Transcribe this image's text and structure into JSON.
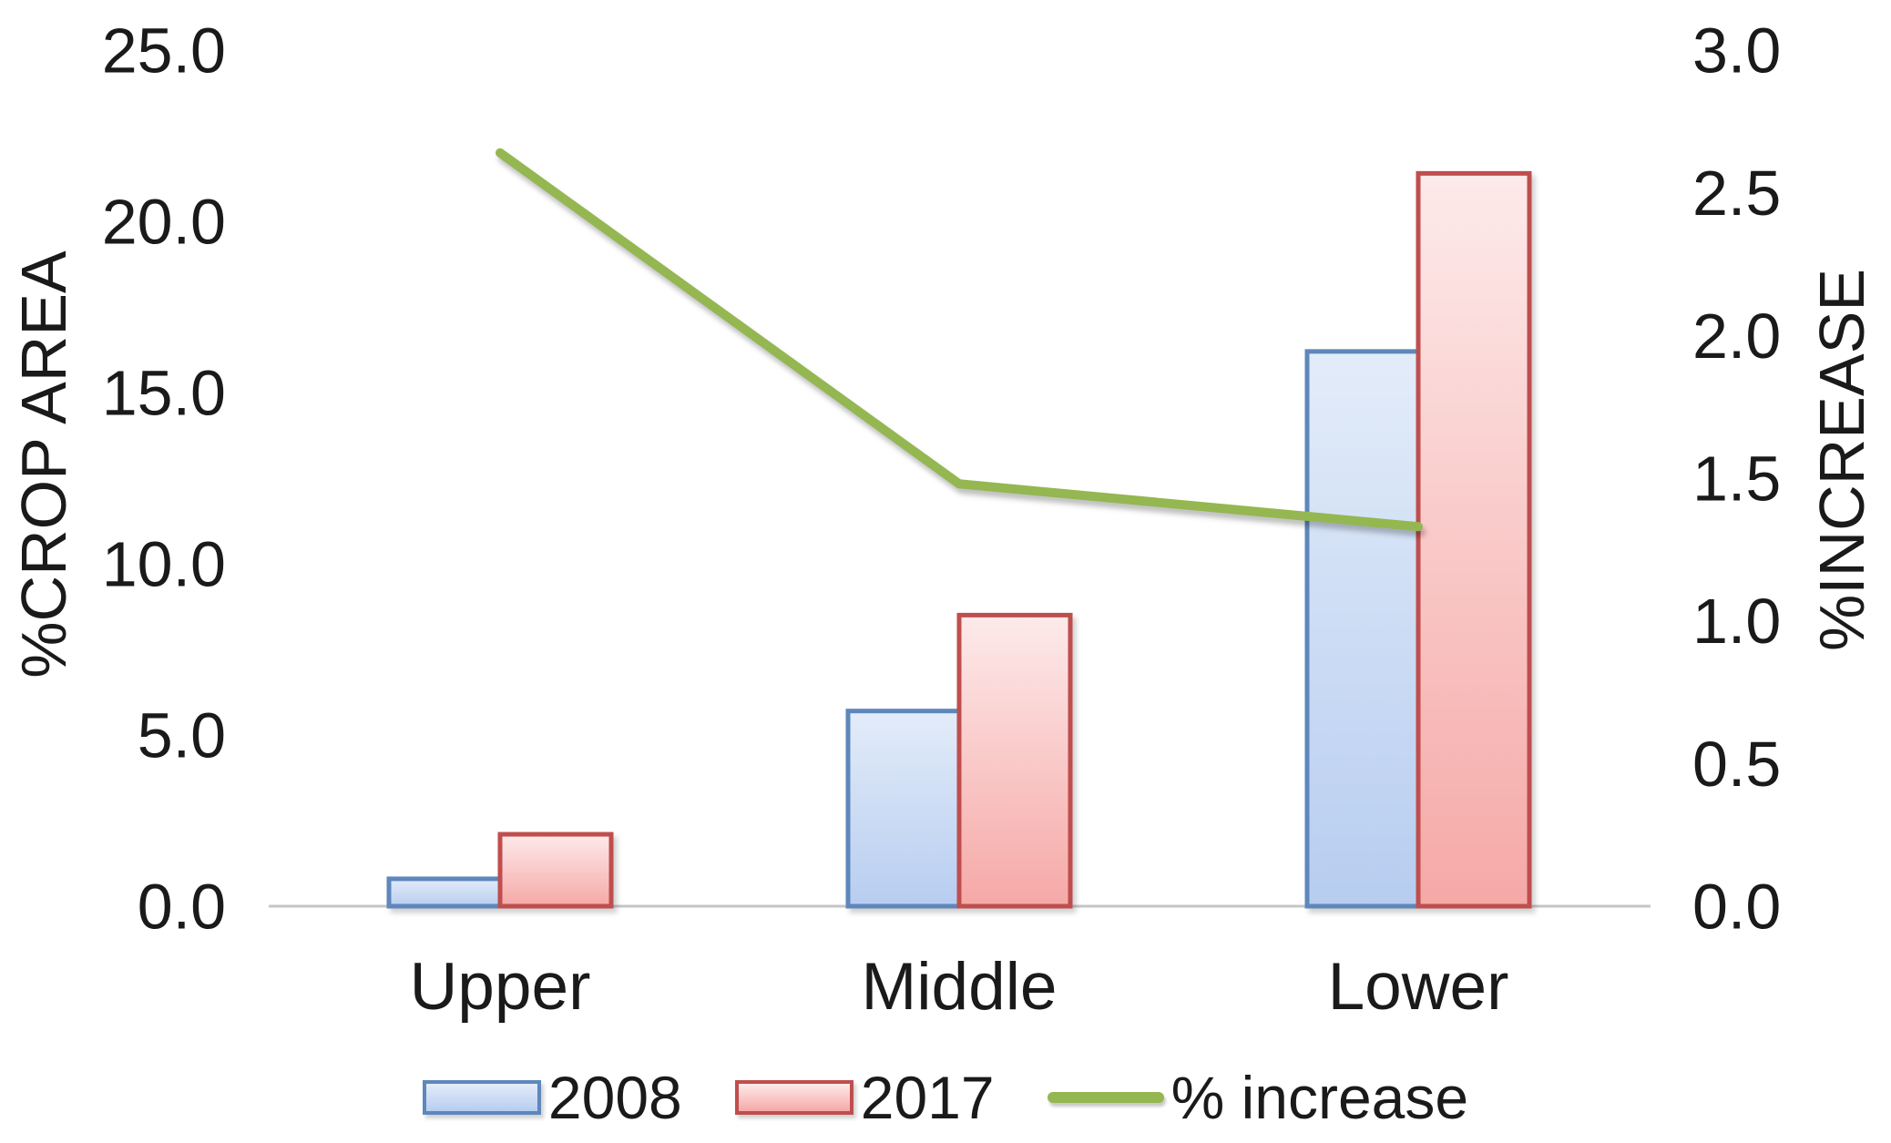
{
  "chart_data": {
    "type": "combo_bar_line",
    "title": "",
    "categories": [
      "Upper",
      "Middle",
      "Lower"
    ],
    "series": [
      {
        "name": "2008",
        "type": "bar",
        "axis": "left",
        "values": [
          0.8,
          5.7,
          16.2
        ],
        "border_color": "#5e87bb",
        "fill_top": "#e3ecf9",
        "fill_bottom": "#b7cdf0"
      },
      {
        "name": "2017",
        "type": "bar",
        "axis": "left",
        "values": [
          2.1,
          8.5,
          21.4
        ],
        "border_color": "#bf4e4e",
        "fill_top": "#fdeaea",
        "fill_bottom": "#f5a9a7"
      },
      {
        "name": "% increase",
        "type": "line",
        "axis": "right",
        "values": [
          2.64,
          1.48,
          1.33
        ],
        "color": "#94b751"
      }
    ],
    "left_axis": {
      "title": "%CROP AREA",
      "min": 0,
      "max": 25,
      "step": 5,
      "tick_labels": [
        "0.0",
        "5.0",
        "10.0",
        "15.0",
        "20.0",
        "25.0"
      ]
    },
    "right_axis": {
      "title": "%INCREASE",
      "min": 0,
      "max": 3,
      "step": 0.5,
      "tick_labels": [
        "0.0",
        "0.5",
        "1.0",
        "1.5",
        "2.0",
        "2.5",
        "3.0"
      ]
    },
    "legend": [
      {
        "label": "2008",
        "symbol": "bar-swatch"
      },
      {
        "label": "2017",
        "symbol": "bar-swatch"
      },
      {
        "label": "% increase",
        "symbol": "line-swatch"
      }
    ],
    "grid": "off",
    "legend_position": "bottom",
    "axis_line_color": "#c6c6c6",
    "text_color": "#1a1a1a",
    "background": "#ffffff"
  }
}
